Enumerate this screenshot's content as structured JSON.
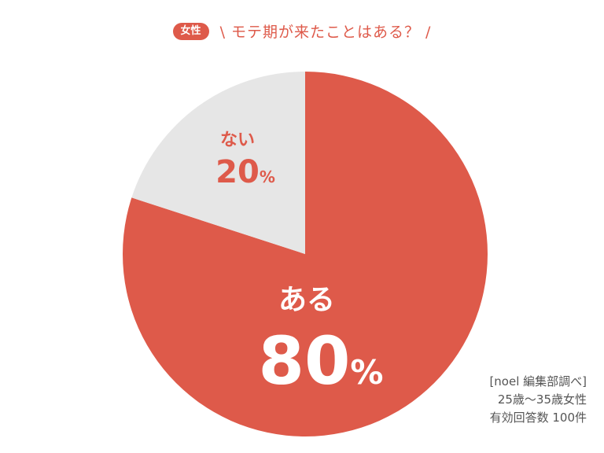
{
  "header": {
    "badge": "女性",
    "title": "\\ モテ期が来たことはある？ /"
  },
  "colors": {
    "accent": "#de5a4a",
    "secondary": "#e6e6e6"
  },
  "chart_data": {
    "type": "pie",
    "slices": [
      {
        "label": "ある",
        "value": 80,
        "value_text": "80",
        "unit": "%",
        "color": "#de5a4a"
      },
      {
        "label": "ない",
        "value": 20,
        "value_text": "20",
        "unit": "%",
        "color": "#e6e6e6"
      }
    ]
  },
  "source": {
    "line1": "[noel 編集部調べ]",
    "line2": "25歳〜35歳女性",
    "line3": "有効回答数 100件"
  }
}
